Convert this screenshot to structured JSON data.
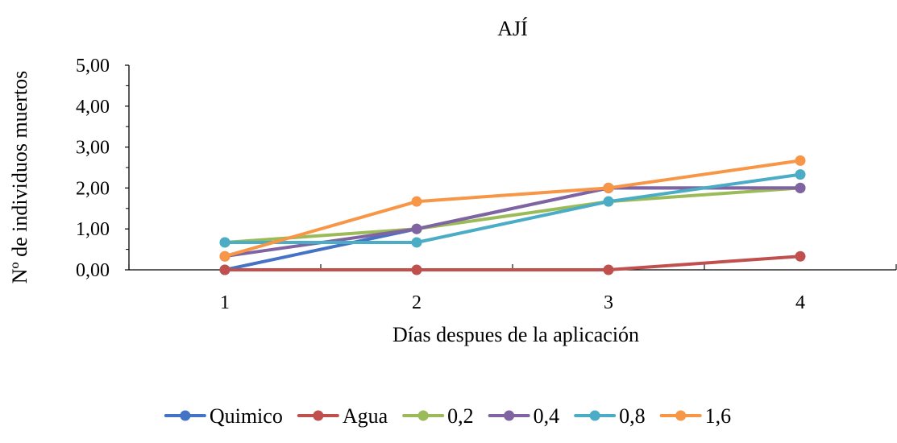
{
  "chart_data": {
    "type": "line",
    "title": "AJÍ",
    "xlabel": "Días despues de la aplicación",
    "ylabel": "Nº de individuos muertos",
    "categories": [
      "1",
      "2",
      "3",
      "4"
    ],
    "ylim": [
      0,
      5
    ],
    "yticks": [
      "0,00",
      "1,00",
      "2,00",
      "3,00",
      "4,00",
      "5,00"
    ],
    "grid": false,
    "legend": "bottom",
    "series": [
      {
        "name": "Quimico",
        "color": "#4472C4",
        "values": [
          0,
          1,
          2,
          2
        ]
      },
      {
        "name": "Agua",
        "color": "#C0504D",
        "values": [
          0,
          0,
          0,
          0.33
        ]
      },
      {
        "name": "0,2",
        "color": "#9BBB59",
        "values": [
          0.67,
          1,
          1.67,
          2
        ]
      },
      {
        "name": "0,4",
        "color": "#8064A2",
        "values": [
          0.33,
          1,
          2,
          2
        ]
      },
      {
        "name": "0,8",
        "color": "#4BACC6",
        "values": [
          0.67,
          0.67,
          1.67,
          2.33
        ]
      },
      {
        "name": "1,6",
        "color": "#F79646",
        "values": [
          0.33,
          1.67,
          2,
          2.67
        ]
      }
    ]
  }
}
